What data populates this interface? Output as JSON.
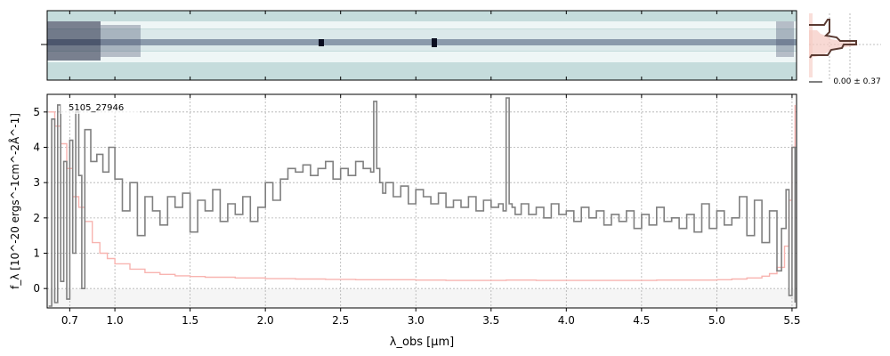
{
  "chart_data": {
    "type": "line",
    "object_label": "5105_27946",
    "xlabel": "λ_obs [μm]",
    "ylabel": "f_λ [10^-20 ergs^-1cm^-2Å^-1]",
    "xlim": [
      0.55,
      5.53
    ],
    "ylim": [
      -0.55,
      5.5
    ],
    "x_ticks": [
      {
        "value": 0.7,
        "label": "0.7"
      },
      {
        "value": 1.0,
        "label": "1.0"
      },
      {
        "value": 1.5,
        "label": "1.5"
      },
      {
        "value": 2.0,
        "label": "2.0"
      },
      {
        "value": 2.5,
        "label": "2.5"
      },
      {
        "value": 3.0,
        "label": "3.0"
      },
      {
        "value": 3.5,
        "label": "3.5"
      },
      {
        "value": 4.0,
        "label": "4.0"
      },
      {
        "value": 4.5,
        "label": "4.5"
      },
      {
        "value": 5.0,
        "label": "5.0"
      },
      {
        "value": 5.5,
        "label": "5.5"
      }
    ],
    "y_ticks": [
      0,
      1,
      2,
      3,
      4,
      5
    ],
    "grid": true,
    "series": [
      {
        "role": "flux",
        "color": "#808080",
        "x": [
          0.56,
          0.58,
          0.6,
          0.62,
          0.64,
          0.66,
          0.68,
          0.7,
          0.72,
          0.74,
          0.76,
          0.78,
          0.8,
          0.84,
          0.88,
          0.92,
          0.96,
          1.0,
          1.05,
          1.1,
          1.15,
          1.2,
          1.25,
          1.3,
          1.35,
          1.4,
          1.45,
          1.5,
          1.55,
          1.6,
          1.65,
          1.7,
          1.75,
          1.8,
          1.85,
          1.9,
          1.95,
          2.0,
          2.05,
          2.1,
          2.15,
          2.2,
          2.25,
          2.3,
          2.35,
          2.4,
          2.45,
          2.5,
          2.55,
          2.6,
          2.65,
          2.7,
          2.72,
          2.74,
          2.76,
          2.78,
          2.8,
          2.85,
          2.9,
          2.95,
          3.0,
          3.05,
          3.1,
          3.15,
          3.2,
          3.25,
          3.3,
          3.35,
          3.4,
          3.45,
          3.5,
          3.55,
          3.58,
          3.6,
          3.62,
          3.64,
          3.66,
          3.7,
          3.75,
          3.8,
          3.85,
          3.9,
          3.95,
          4.0,
          4.05,
          4.1,
          4.15,
          4.2,
          4.25,
          4.3,
          4.35,
          4.4,
          4.45,
          4.5,
          4.55,
          4.6,
          4.65,
          4.7,
          4.75,
          4.8,
          4.85,
          4.9,
          4.95,
          5.0,
          5.05,
          5.1,
          5.15,
          5.2,
          5.25,
          5.3,
          5.35,
          5.4,
          5.43,
          5.46,
          5.48,
          5.5,
          5.52
        ],
        "y": [
          -0.5,
          4.8,
          -0.4,
          5.2,
          0.2,
          3.6,
          -0.3,
          4.2,
          1.0,
          5.0,
          3.2,
          0.0,
          4.5,
          3.6,
          3.8,
          3.3,
          4.0,
          3.1,
          2.2,
          3.0,
          1.5,
          2.6,
          2.2,
          1.8,
          2.6,
          2.3,
          2.7,
          1.6,
          2.5,
          2.2,
          2.8,
          1.9,
          2.4,
          2.1,
          2.6,
          1.9,
          2.3,
          3.0,
          2.5,
          3.1,
          3.4,
          3.3,
          3.5,
          3.2,
          3.4,
          3.6,
          3.1,
          3.4,
          3.2,
          3.6,
          3.4,
          3.3,
          5.3,
          3.4,
          3.0,
          2.7,
          3.0,
          2.6,
          2.9,
          2.4,
          2.8,
          2.6,
          2.4,
          2.7,
          2.3,
          2.5,
          2.3,
          2.6,
          2.2,
          2.5,
          2.3,
          2.4,
          2.2,
          5.4,
          2.4,
          2.3,
          2.1,
          2.4,
          2.1,
          2.3,
          2.0,
          2.4,
          2.1,
          2.2,
          1.9,
          2.3,
          2.0,
          2.2,
          1.8,
          2.1,
          1.9,
          2.2,
          1.7,
          2.1,
          1.8,
          2.3,
          1.9,
          2.0,
          1.7,
          2.1,
          1.6,
          2.4,
          1.7,
          2.2,
          1.8,
          2.0,
          2.6,
          1.5,
          2.5,
          1.3,
          2.2,
          0.5,
          1.7,
          2.8,
          -0.2,
          4.0,
          -0.4
        ]
      },
      {
        "role": "error",
        "color": "#f8b4b0",
        "x": [
          0.56,
          0.6,
          0.64,
          0.68,
          0.72,
          0.76,
          0.8,
          0.85,
          0.9,
          0.95,
          1.0,
          1.1,
          1.2,
          1.3,
          1.4,
          1.5,
          1.6,
          1.8,
          2.0,
          2.2,
          2.4,
          2.6,
          2.8,
          3.0,
          3.2,
          3.4,
          3.6,
          3.8,
          4.0,
          4.2,
          4.4,
          4.6,
          4.8,
          5.0,
          5.1,
          5.2,
          5.3,
          5.35,
          5.4,
          5.45,
          5.48,
          5.5,
          5.52
        ],
        "y": [
          5.0,
          4.6,
          4.1,
          3.4,
          2.6,
          2.3,
          1.9,
          1.3,
          1.0,
          0.85,
          0.7,
          0.55,
          0.45,
          0.4,
          0.36,
          0.34,
          0.32,
          0.3,
          0.28,
          0.27,
          0.26,
          0.25,
          0.25,
          0.24,
          0.23,
          0.23,
          0.24,
          0.23,
          0.23,
          0.23,
          0.23,
          0.24,
          0.24,
          0.25,
          0.27,
          0.3,
          0.35,
          0.42,
          0.6,
          1.2,
          2.5,
          4.0,
          5.2
        ]
      }
    ]
  },
  "side_panel": {
    "label": "0.00 ± 0.37"
  },
  "colors": {
    "spectrum2d_background": "#c5dcdc",
    "spectrum2d_trace": "#1a1f3a",
    "flux_line": "#808080",
    "error_line": "#f8b4b0",
    "profile_line": "#5a3a32"
  }
}
